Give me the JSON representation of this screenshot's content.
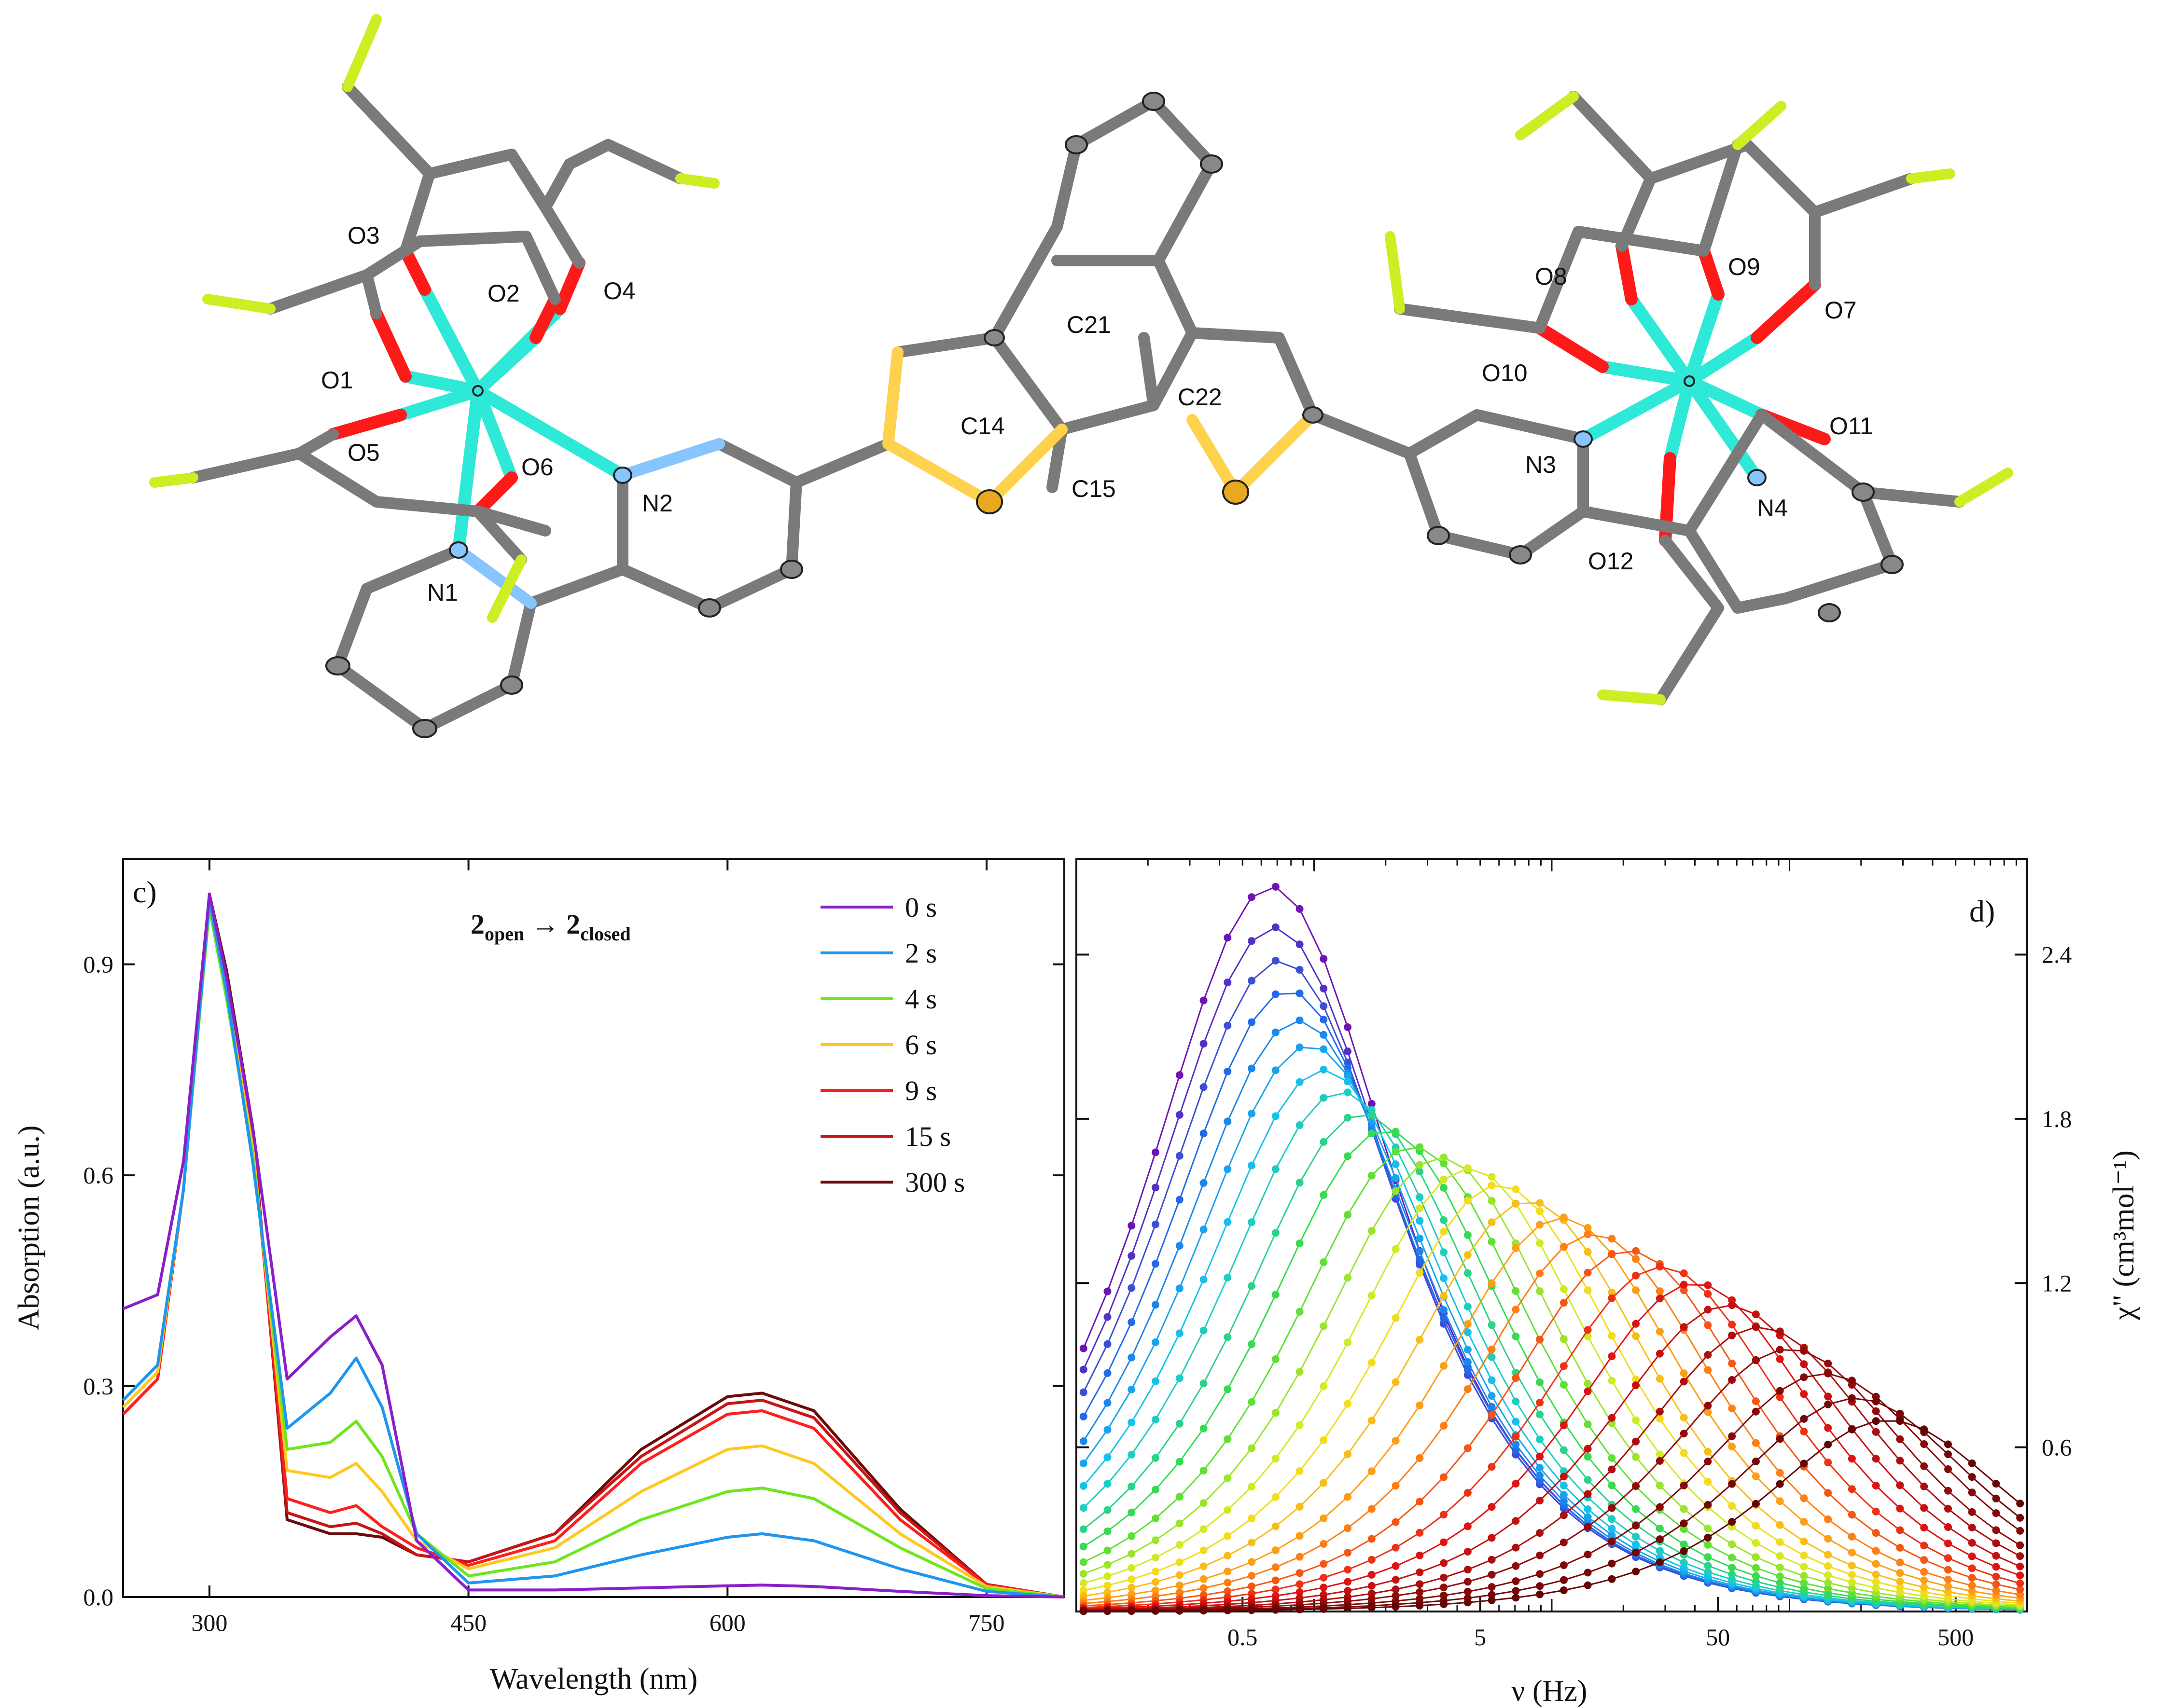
{
  "structure": {
    "atom_labels": [
      "O3",
      "O2",
      "O4",
      "O1",
      "O5",
      "O6",
      "N2",
      "N1",
      "C21",
      "C14",
      "C22",
      "C15",
      "O8",
      "O9",
      "O7",
      "O10",
      "O11",
      "N3",
      "N4",
      "O12"
    ],
    "colors": {
      "carbon": "#7a7a7a",
      "oxygen": "#ff1a1a",
      "nitrogen": "#87c5ff",
      "fluorine": "#ccee22",
      "sulfur": "#ffd24d",
      "metal": "#2ee8d8"
    }
  },
  "chart_data": [
    {
      "type": "line",
      "panel_label": "c)",
      "annotation": {
        "base": "2",
        "from": "open",
        "arrow": "→",
        "to": "closed"
      },
      "xlabel": "Wavelength (nm)",
      "ylabel": "Absorption (a.u.)",
      "xlim": [
        250,
        795
      ],
      "ylim": [
        0.0,
        1.05
      ],
      "xticks": [
        300,
        450,
        600,
        750
      ],
      "yticks": [
        0.0,
        0.3,
        0.6,
        0.9
      ],
      "legend_position": "top-right",
      "x": [
        250,
        270,
        285,
        300,
        310,
        325,
        345,
        370,
        385,
        400,
        420,
        450,
        500,
        550,
        600,
        620,
        650,
        700,
        750,
        795
      ],
      "series": [
        {
          "name": "0 s",
          "color": "#8a1ec8",
          "values": [
            0.41,
            0.43,
            0.62,
            1.0,
            0.88,
            0.67,
            0.31,
            0.37,
            0.4,
            0.33,
            0.08,
            0.01,
            0.01,
            0.013,
            0.016,
            0.017,
            0.015,
            0.008,
            0.002,
            0.0
          ]
        },
        {
          "name": "2 s",
          "color": "#1e96f0",
          "values": [
            0.28,
            0.33,
            0.58,
            0.99,
            0.86,
            0.62,
            0.24,
            0.29,
            0.34,
            0.27,
            0.09,
            0.02,
            0.03,
            0.06,
            0.085,
            0.09,
            0.08,
            0.04,
            0.008,
            0.0
          ]
        },
        {
          "name": "4 s",
          "color": "#6ee61e",
          "values": [
            0.28,
            0.33,
            0.58,
            0.98,
            0.85,
            0.63,
            0.21,
            0.22,
            0.25,
            0.2,
            0.09,
            0.03,
            0.05,
            0.11,
            0.15,
            0.155,
            0.14,
            0.07,
            0.012,
            0.0
          ]
        },
        {
          "name": "6 s",
          "color": "#ffc81e",
          "values": [
            0.27,
            0.32,
            0.58,
            0.98,
            0.86,
            0.64,
            0.18,
            0.17,
            0.19,
            0.15,
            0.08,
            0.04,
            0.07,
            0.15,
            0.21,
            0.215,
            0.19,
            0.09,
            0.015,
            0.0
          ]
        },
        {
          "name": "9 s",
          "color": "#ff1e1e",
          "values": [
            0.26,
            0.31,
            0.58,
            0.99,
            0.87,
            0.65,
            0.14,
            0.12,
            0.13,
            0.1,
            0.07,
            0.045,
            0.08,
            0.19,
            0.26,
            0.265,
            0.24,
            0.11,
            0.017,
            0.0
          ]
        },
        {
          "name": "15 s",
          "color": "#c81414",
          "values": [
            0.26,
            0.31,
            0.58,
            0.99,
            0.88,
            0.66,
            0.12,
            0.1,
            0.105,
            0.09,
            0.06,
            0.05,
            0.09,
            0.2,
            0.275,
            0.28,
            0.255,
            0.12,
            0.018,
            0.0
          ]
        },
        {
          "name": "300 s",
          "color": "#6e0a0a",
          "values": [
            0.26,
            0.31,
            0.58,
            1.0,
            0.89,
            0.67,
            0.11,
            0.09,
            0.09,
            0.085,
            0.06,
            0.05,
            0.09,
            0.21,
            0.285,
            0.29,
            0.265,
            0.125,
            0.018,
            0.0
          ]
        }
      ]
    },
    {
      "type": "scatter",
      "panel_label": "d)",
      "xlabel": "ν (Hz)",
      "ylabel": "χ\" (cm³mol⁻¹)",
      "xscale": "log",
      "xlim": [
        0.1,
        1000
      ],
      "ylim": [
        0.0,
        2.75
      ],
      "xticks": [
        "0.5",
        "5",
        "50",
        "500"
      ],
      "yticks": [
        "0.6",
        "1.2",
        "1.8",
        "2.4"
      ],
      "series_peak_frequency_hz": [
        0.66,
        0.68,
        0.72,
        0.78,
        0.86,
        0.96,
        1.1,
        1.3,
        1.6,
        2.0,
        2.6,
        3.4,
        4.5,
        6.0,
        8.0,
        11,
        15,
        21,
        29,
        40,
        55,
        75,
        100,
        140,
        190,
        260
      ],
      "series_peak_height": [
        2.65,
        2.5,
        2.38,
        2.27,
        2.16,
        2.07,
        1.98,
        1.9,
        1.82,
        1.76,
        1.7,
        1.66,
        1.62,
        1.56,
        1.5,
        1.44,
        1.38,
        1.32,
        1.26,
        1.2,
        1.12,
        1.04,
        0.96,
        0.87,
        0.78,
        0.7
      ],
      "series_color_order": "violet → blue → cyan → green → yellow → orange → red → dark red"
    }
  ]
}
